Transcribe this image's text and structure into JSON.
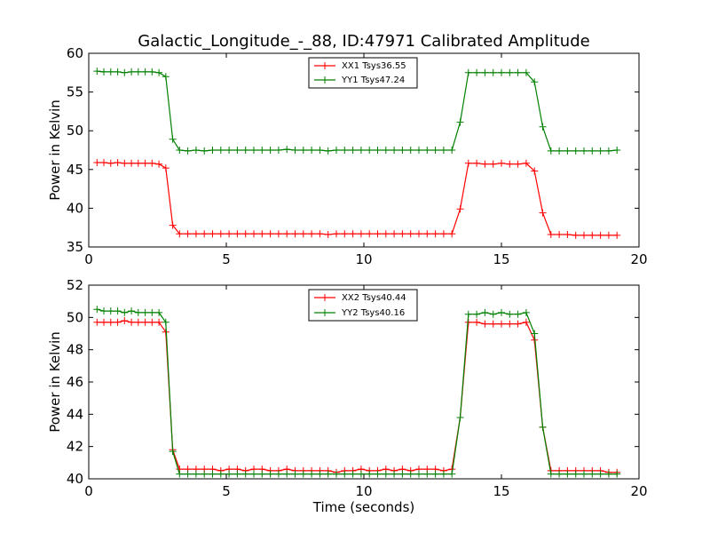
{
  "chart_data": [
    {
      "type": "line",
      "title": "Galactic_Longitude_-_88, ID:47971 Calibrated Amplitude",
      "xlabel": "",
      "ylabel": "Power in Kelvin",
      "xlim": [
        0,
        20
      ],
      "ylim": [
        35,
        60
      ],
      "xticks": [
        0,
        5,
        10,
        15,
        20
      ],
      "yticks": [
        35,
        40,
        45,
        50,
        55,
        60
      ],
      "legend": "top-center",
      "grid": false,
      "series": [
        {
          "name": "XX1 Tsys36.55",
          "color": "#ff0000",
          "x": [
            0.3,
            0.55,
            0.8,
            1.05,
            1.3,
            1.55,
            1.8,
            2.05,
            2.3,
            2.55,
            2.8,
            3.05,
            3.3,
            3.6,
            3.9,
            4.2,
            4.5,
            4.8,
            5.1,
            5.4,
            5.7,
            6.0,
            6.3,
            6.6,
            6.9,
            7.2,
            7.5,
            7.8,
            8.1,
            8.4,
            8.7,
            9.0,
            9.3,
            9.6,
            9.9,
            10.2,
            10.5,
            10.8,
            11.1,
            11.4,
            11.7,
            12.0,
            12.3,
            12.6,
            12.9,
            13.2,
            13.5,
            13.8,
            14.1,
            14.4,
            14.7,
            15.0,
            15.3,
            15.6,
            15.9,
            16.2,
            16.5,
            16.8,
            17.1,
            17.4,
            17.7,
            18.0,
            18.3,
            18.6,
            18.9,
            19.2
          ],
          "y": [
            45.9,
            45.9,
            45.8,
            45.9,
            45.8,
            45.8,
            45.8,
            45.8,
            45.8,
            45.7,
            45.2,
            37.8,
            36.7,
            36.7,
            36.7,
            36.7,
            36.7,
            36.7,
            36.7,
            36.7,
            36.7,
            36.7,
            36.7,
            36.7,
            36.7,
            36.7,
            36.7,
            36.7,
            36.7,
            36.7,
            36.6,
            36.7,
            36.7,
            36.7,
            36.7,
            36.7,
            36.7,
            36.7,
            36.7,
            36.7,
            36.7,
            36.7,
            36.7,
            36.7,
            36.7,
            36.7,
            39.9,
            45.8,
            45.8,
            45.7,
            45.7,
            45.8,
            45.7,
            45.7,
            45.8,
            44.8,
            39.4,
            36.6,
            36.6,
            36.6,
            36.5,
            36.5,
            36.5,
            36.5,
            36.5,
            36.5
          ]
        },
        {
          "name": "YY1 Tsys47.24",
          "color": "#008000",
          "x": [
            0.3,
            0.55,
            0.8,
            1.05,
            1.3,
            1.55,
            1.8,
            2.05,
            2.3,
            2.55,
            2.8,
            3.05,
            3.3,
            3.6,
            3.9,
            4.2,
            4.5,
            4.8,
            5.1,
            5.4,
            5.7,
            6.0,
            6.3,
            6.6,
            6.9,
            7.2,
            7.5,
            7.8,
            8.1,
            8.4,
            8.7,
            9.0,
            9.3,
            9.6,
            9.9,
            10.2,
            10.5,
            10.8,
            11.1,
            11.4,
            11.7,
            12.0,
            12.3,
            12.6,
            12.9,
            13.2,
            13.5,
            13.8,
            14.1,
            14.4,
            14.7,
            15.0,
            15.3,
            15.6,
            15.9,
            16.2,
            16.5,
            16.8,
            17.1,
            17.4,
            17.7,
            18.0,
            18.3,
            18.6,
            18.9,
            19.2
          ],
          "y": [
            57.7,
            57.6,
            57.6,
            57.6,
            57.5,
            57.6,
            57.6,
            57.6,
            57.6,
            57.5,
            57.0,
            48.9,
            47.5,
            47.4,
            47.5,
            47.4,
            47.5,
            47.5,
            47.5,
            47.5,
            47.5,
            47.5,
            47.5,
            47.5,
            47.5,
            47.6,
            47.5,
            47.5,
            47.5,
            47.5,
            47.4,
            47.5,
            47.5,
            47.5,
            47.5,
            47.5,
            47.5,
            47.5,
            47.5,
            47.5,
            47.5,
            47.5,
            47.5,
            47.5,
            47.5,
            47.5,
            51.1,
            57.5,
            57.5,
            57.5,
            57.5,
            57.5,
            57.5,
            57.5,
            57.5,
            56.3,
            50.5,
            47.4,
            47.4,
            47.4,
            47.4,
            47.4,
            47.4,
            47.4,
            47.4,
            47.5
          ]
        }
      ]
    },
    {
      "type": "line",
      "title": "",
      "xlabel": "Time (seconds)",
      "ylabel": "Power in Kelvin",
      "xlim": [
        0,
        20
      ],
      "ylim": [
        40,
        52
      ],
      "xticks": [
        0,
        5,
        10,
        15,
        20
      ],
      "yticks": [
        40,
        42,
        44,
        46,
        48,
        50,
        52
      ],
      "legend": "top-center",
      "grid": false,
      "series": [
        {
          "name": "XX2 Tsys40.44",
          "color": "#ff0000",
          "x": [
            0.3,
            0.55,
            0.8,
            1.05,
            1.3,
            1.55,
            1.8,
            2.05,
            2.3,
            2.55,
            2.8,
            3.05,
            3.3,
            3.6,
            3.9,
            4.2,
            4.5,
            4.8,
            5.1,
            5.4,
            5.7,
            6.0,
            6.3,
            6.6,
            6.9,
            7.2,
            7.5,
            7.8,
            8.1,
            8.4,
            8.7,
            9.0,
            9.3,
            9.6,
            9.9,
            10.2,
            10.5,
            10.8,
            11.1,
            11.4,
            11.7,
            12.0,
            12.3,
            12.6,
            12.9,
            13.2,
            13.5,
            13.8,
            14.1,
            14.4,
            14.7,
            15.0,
            15.3,
            15.6,
            15.9,
            16.2,
            16.5,
            16.8,
            17.1,
            17.4,
            17.7,
            18.0,
            18.3,
            18.6,
            18.9,
            19.2
          ],
          "y": [
            49.7,
            49.7,
            49.7,
            49.7,
            49.8,
            49.7,
            49.7,
            49.7,
            49.7,
            49.7,
            49.1,
            41.8,
            40.6,
            40.6,
            40.6,
            40.6,
            40.6,
            40.5,
            40.6,
            40.6,
            40.5,
            40.6,
            40.6,
            40.5,
            40.5,
            40.6,
            40.5,
            40.5,
            40.5,
            40.5,
            40.5,
            40.4,
            40.5,
            40.5,
            40.6,
            40.5,
            40.5,
            40.6,
            40.5,
            40.6,
            40.5,
            40.6,
            40.6,
            40.6,
            40.5,
            40.6,
            43.8,
            49.7,
            49.7,
            49.6,
            49.6,
            49.6,
            49.6,
            49.6,
            49.7,
            48.6,
            43.2,
            40.5,
            40.5,
            40.5,
            40.5,
            40.5,
            40.5,
            40.5,
            40.4,
            40.4
          ]
        },
        {
          "name": "YY2 Tsys40.16",
          "color": "#008000",
          "x": [
            0.3,
            0.55,
            0.8,
            1.05,
            1.3,
            1.55,
            1.8,
            2.05,
            2.3,
            2.55,
            2.8,
            3.05,
            3.3,
            3.6,
            3.9,
            4.2,
            4.5,
            4.8,
            5.1,
            5.4,
            5.7,
            6.0,
            6.3,
            6.6,
            6.9,
            7.2,
            7.5,
            7.8,
            8.1,
            8.4,
            8.7,
            9.0,
            9.3,
            9.6,
            9.9,
            10.2,
            10.5,
            10.8,
            11.1,
            11.4,
            11.7,
            12.0,
            12.3,
            12.6,
            12.9,
            13.2,
            13.5,
            13.8,
            14.1,
            14.4,
            14.7,
            15.0,
            15.3,
            15.6,
            15.9,
            16.2,
            16.5,
            16.8,
            17.1,
            17.4,
            17.7,
            18.0,
            18.3,
            18.6,
            18.9,
            19.2
          ],
          "y": [
            50.5,
            50.4,
            50.4,
            50.4,
            50.3,
            50.4,
            50.3,
            50.3,
            50.3,
            50.3,
            49.7,
            41.7,
            40.3,
            40.3,
            40.3,
            40.3,
            40.3,
            40.3,
            40.3,
            40.3,
            40.3,
            40.3,
            40.3,
            40.3,
            40.3,
            40.3,
            40.3,
            40.3,
            40.3,
            40.3,
            40.3,
            40.3,
            40.3,
            40.3,
            40.3,
            40.3,
            40.3,
            40.3,
            40.3,
            40.3,
            40.3,
            40.3,
            40.3,
            40.3,
            40.3,
            40.3,
            43.8,
            50.2,
            50.2,
            50.3,
            50.2,
            50.3,
            50.2,
            50.2,
            50.3,
            49.0,
            43.2,
            40.3,
            40.3,
            40.3,
            40.3,
            40.3,
            40.3,
            40.3,
            40.3,
            40.3
          ]
        }
      ]
    }
  ]
}
